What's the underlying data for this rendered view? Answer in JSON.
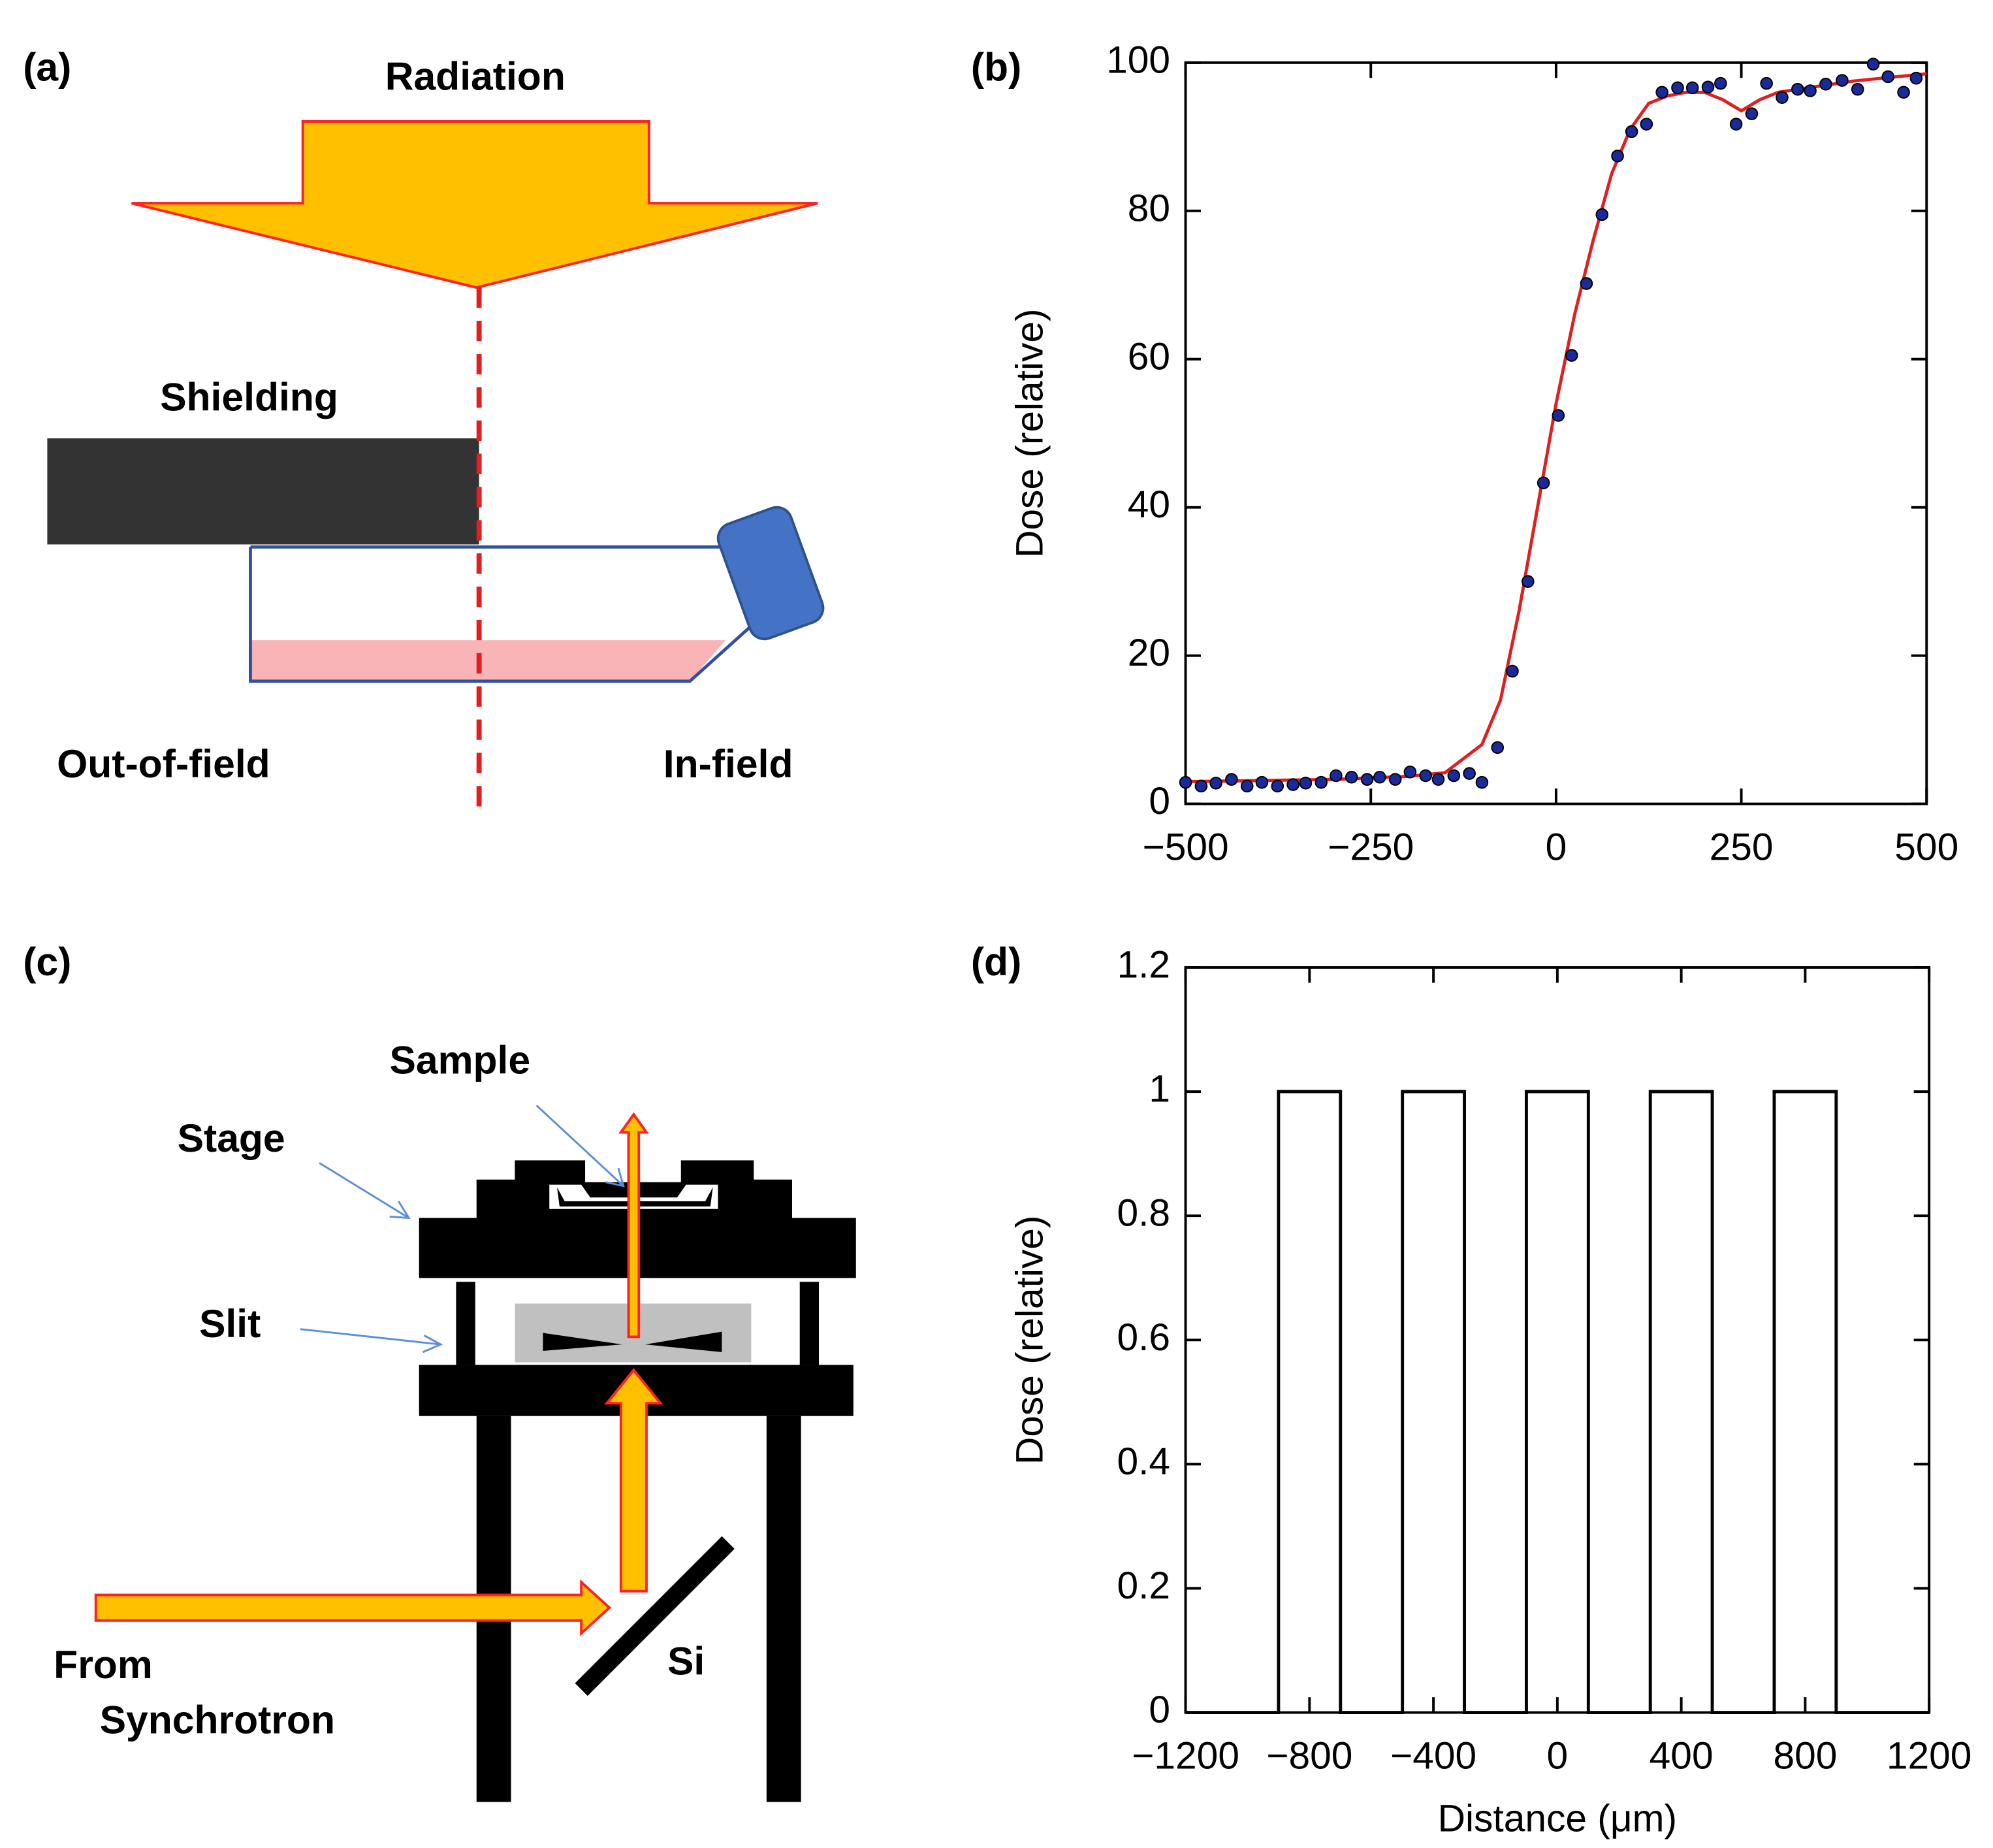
{
  "figure": {
    "labels": [
      "(a)",
      "(b)",
      "(c)",
      "(d)"
    ]
  },
  "diagram_a": {
    "title": "Radiation",
    "shielding": "Shielding",
    "out_of_field": "Out-of-field",
    "in_field": "In-field"
  },
  "diagram_c": {
    "sample": "Sample",
    "stage": "Stage",
    "slit": "Slit",
    "source": [
      "From",
      "Synchrotron"
    ],
    "crystal": "Si"
  },
  "chart_data": [
    {
      "type": "scatter",
      "ylabel": "Dose (relative)",
      "xlim": [
        -500,
        500
      ],
      "xticks": [
        {
          "value": -500,
          "label": "−500"
        },
        {
          "value": -250,
          "label": "−250"
        },
        0,
        250,
        500
      ],
      "ylim": [
        0,
        100
      ],
      "yticks": [
        0,
        20,
        40,
        60,
        80,
        100
      ],
      "series": [
        {
          "kind": "line",
          "color": "#e02020",
          "x": [
            -500,
            -300,
            -200,
            -150,
            -100,
            -75,
            -50,
            -25,
            0,
            25,
            50,
            75,
            100,
            125,
            150,
            175,
            200,
            225,
            250,
            275,
            300,
            400,
            500
          ],
          "values": [
            3,
            3.3,
            3.7,
            4.2,
            8,
            14,
            26,
            40,
            54,
            66,
            76,
            85,
            91,
            94.5,
            95.5,
            96,
            96,
            95,
            93.5,
            95,
            96,
            97.5,
            98.5
          ]
        },
        {
          "kind": "scatter",
          "color": "#1a2a9a",
          "x": [
            -500,
            -479,
            -459,
            -438,
            -417,
            -397,
            -376,
            -355,
            -338,
            -317,
            -297,
            -276,
            -255,
            -238,
            -217,
            -197,
            -176,
            -159,
            -138,
            -117,
            -100,
            -79,
            -59,
            -38,
            -17,
            3,
            21,
            41,
            62,
            83,
            102,
            122,
            143,
            164,
            184,
            205,
            222,
            243,
            264,
            284,
            305,
            326,
            343,
            364,
            386,
            407,
            428,
            448,
            469,
            486
          ],
          "values": [
            2.9,
            2.4,
            2.8,
            3.3,
            2.4,
            2.9,
            2.4,
            2.6,
            2.8,
            2.9,
            3.8,
            3.6,
            3.3,
            3.6,
            3.3,
            4.3,
            3.8,
            3.3,
            3.8,
            4.1,
            2.9,
            7.6,
            17.9,
            30,
            43.3,
            52.4,
            60.5,
            70.2,
            79.5,
            87.4,
            90.7,
            91.7,
            96,
            96.6,
            96.6,
            96.7,
            97.2,
            91.7,
            93.1,
            97.2,
            95.3,
            96.4,
            96.2,
            97.1,
            97.6,
            96.4,
            99.8,
            98.1,
            96,
            97.9
          ]
        }
      ]
    },
    {
      "type": "line",
      "ylabel": "Dose (relative)",
      "xlabel": "Distance (μm)",
      "xlim": [
        -1200,
        1200
      ],
      "xticks": [
        {
          "value": -1200,
          "label": "−1200"
        },
        {
          "value": -800,
          "label": "−800"
        },
        {
          "value": -400,
          "label": "−400"
        },
        0,
        400,
        800,
        1200
      ],
      "ylim": [
        0,
        1.2
      ],
      "yticks": [
        0,
        0.2,
        0.4,
        0.6,
        0.8,
        1,
        1.2
      ],
      "series": [
        {
          "kind": "line",
          "color": "#000000",
          "x": [
            -1200,
            -900,
            -900,
            -700,
            -700,
            -500,
            -500,
            -300,
            -300,
            -100,
            -100,
            100,
            100,
            300,
            300,
            500,
            500,
            700,
            700,
            900,
            900,
            1200
          ],
          "values": [
            0,
            0,
            1,
            1,
            0,
            0,
            1,
            1,
            0,
            0,
            1,
            1,
            0,
            0,
            1,
            1,
            0,
            0,
            1,
            1,
            0,
            0
          ]
        }
      ]
    }
  ]
}
